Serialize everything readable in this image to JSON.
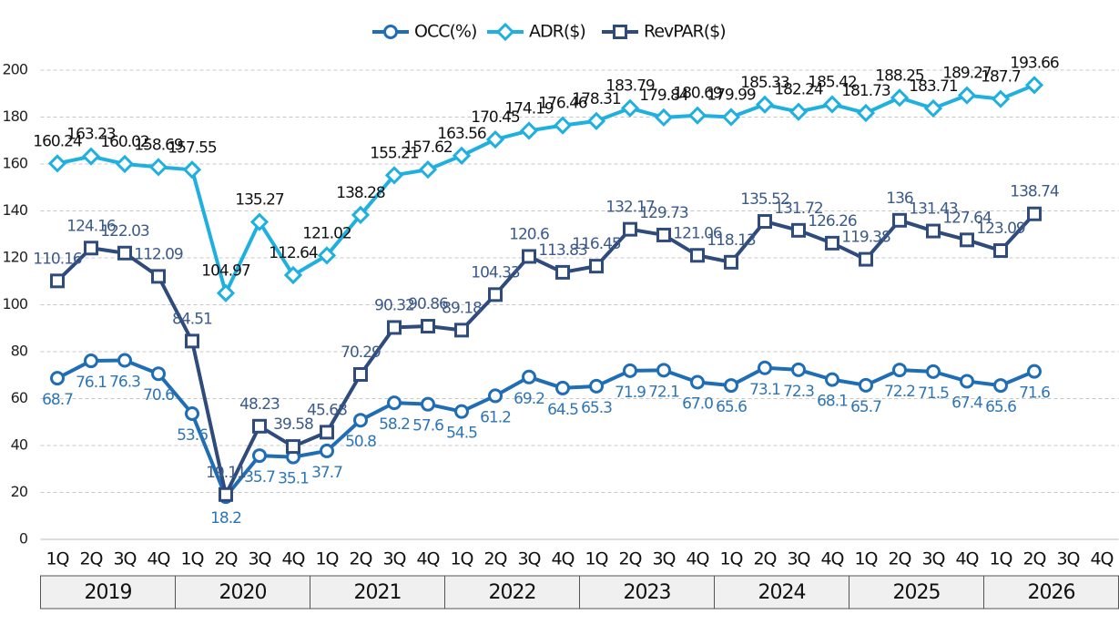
{
  "chart_data": {
    "type": "line",
    "categories": [
      "1Q",
      "2Q",
      "3Q",
      "4Q",
      "1Q",
      "2Q",
      "3Q",
      "4Q",
      "1Q",
      "2Q",
      "3Q",
      "4Q",
      "1Q",
      "2Q",
      "3Q",
      "4Q",
      "1Q",
      "2Q",
      "3Q",
      "4Q",
      "1Q",
      "2Q",
      "3Q",
      "4Q",
      "1Q",
      "2Q",
      "3Q",
      "4Q",
      "1Q",
      "2Q",
      "3Q",
      "4Q"
    ],
    "years": [
      "2019",
      "2020",
      "2021",
      "2022",
      "2023",
      "2024",
      "2025",
      "2026"
    ],
    "ylim": [
      0,
      200
    ],
    "yticks": [
      0,
      20,
      40,
      60,
      80,
      100,
      120,
      140,
      160,
      180,
      200
    ],
    "grid": true,
    "legend": "top",
    "series": [
      {
        "name": "OCC(%)",
        "color": "#1f6db5",
        "label_color": "#2e75b6",
        "marker": "circle",
        "label_position": "below",
        "values": [
          68.7,
          76.1,
          76.3,
          70.6,
          53.6,
          18.2,
          35.7,
          35.1,
          37.7,
          50.8,
          58.2,
          57.6,
          54.5,
          61.2,
          69.2,
          64.5,
          65.3,
          71.9,
          72.1,
          67.0,
          65.6,
          73.1,
          72.3,
          68.1,
          65.7,
          72.2,
          71.5,
          67.4,
          65.6,
          71.6,
          null,
          null
        ],
        "value_labels": [
          "68.7",
          "76.1",
          "76.3",
          "70.6",
          "53.6",
          "18.2",
          "35.7",
          "35.1",
          "37.7",
          "50.8",
          "58.2",
          "57.6",
          "54.5",
          "61.2",
          "69.2",
          "64.5",
          "65.3",
          "71.9",
          "72.1",
          "67.0",
          "65.6",
          "73.1",
          "72.3",
          "68.1",
          "65.7",
          "72.2",
          "71.5",
          "67.4",
          "65.6",
          "71.6",
          null,
          null
        ]
      },
      {
        "name": "ADR($)",
        "color": "#1fb0e0",
        "label_color": "#111111",
        "marker": "diamond",
        "label_position": "above",
        "values": [
          160.24,
          163.23,
          160.02,
          158.69,
          157.55,
          104.97,
          135.27,
          112.64,
          121.02,
          138.28,
          155.21,
          157.62,
          163.56,
          170.45,
          174.19,
          176.46,
          178.31,
          183.79,
          179.84,
          180.69,
          179.99,
          185.33,
          182.24,
          185.42,
          181.73,
          188.25,
          183.71,
          189.27,
          187.7,
          193.66,
          null,
          null
        ]
      },
      {
        "name": "RevPAR($)",
        "color": "#2f4b7c",
        "label_color": "#3b5a8a",
        "marker": "square",
        "label_position": "above",
        "values": [
          110.16,
          124.16,
          122.03,
          112.09,
          84.51,
          19.11,
          48.23,
          39.58,
          45.68,
          70.29,
          90.32,
          90.86,
          89.18,
          104.33,
          120.6,
          113.83,
          116.45,
          132.17,
          129.73,
          121.06,
          118.13,
          135.52,
          131.72,
          126.26,
          119.38,
          136,
          131.43,
          127.64,
          123.09,
          138.74,
          null,
          null
        ]
      }
    ]
  }
}
